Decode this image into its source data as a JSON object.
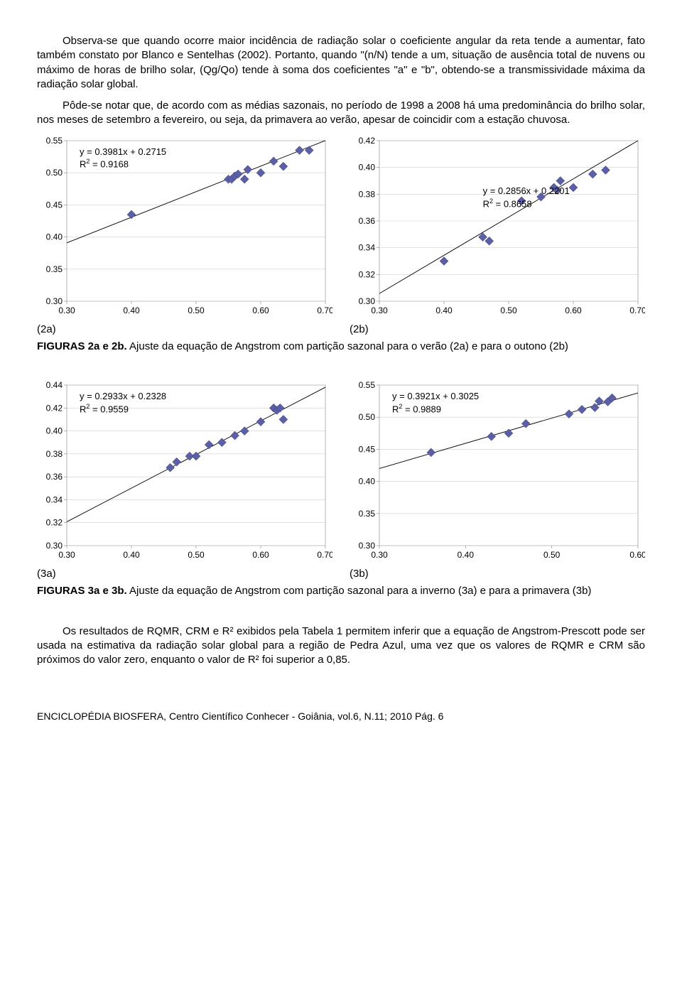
{
  "paragraphs": {
    "p1": "Observa-se que quando ocorre maior incidência de radiação solar o coeficiente angular da reta tende a aumentar, fato também constato por Blanco e Sentelhas (2002). Portanto, quando \"(n/N) tende a um, situação de ausência total de nuvens ou máximo de horas de brilho solar, (Qg/Qo) tende à soma dos coeficientes \"a\" e \"b\", obtendo-se a transmissividade máxima da radiação solar global.",
    "p2": "Pôde-se notar que, de acordo com as médias sazonais, no período de 1998 a 2008 há uma predominância do brilho solar, nos meses de setembro a fevereiro, ou seja, da primavera ao verão, apesar de coincidir com a estação chuvosa.",
    "p3": "Os resultados de RQMR, CRM e R² exibidos pela Tabela 1 permitem inferir que a equação de Angstrom-Prescott pode ser usada na estimativa da radiação solar global para a região de Pedra Azul, uma vez que os valores de RQMR e CRM são próximos do valor zero, enquanto o valor de R² foi superior a 0,85."
  },
  "labels": {
    "l2a": "(2a)",
    "l2b": "(2b)",
    "l3a": "(3a)",
    "l3b": "(3b)"
  },
  "captions": {
    "c2_bold": "FIGURAS 2a e 2b.",
    "c2_rest": " Ajuste da equação de Angstrom com partição sazonal para o verão (2a) e para o outono (2b)",
    "c3_bold": "FIGURAS 3a e 3b.",
    "c3_rest": " Ajuste da equação de Angstrom com partição sazonal para a inverno (3a) e para a primavera (3b)"
  },
  "footer": {
    "text": "ENCICLOPÉDIA BIOSFERA, Centro Científico Conhecer - Goiânia, vol.6, N.11; 2010 Pág. 6"
  },
  "charts": {
    "c2a": {
      "type": "scatter",
      "xlim": [
        0.3,
        0.7
      ],
      "xtick_step": 0.1,
      "ylim": [
        0.3,
        0.55
      ],
      "ytick_step": 0.05,
      "equation": "y = 0.3981x + 0.2715",
      "r2": "R² = 0.9168",
      "eq_pos": "top-left",
      "points": [
        [
          0.4,
          0.435
        ],
        [
          0.55,
          0.49
        ],
        [
          0.555,
          0.49
        ],
        [
          0.56,
          0.495
        ],
        [
          0.565,
          0.498
        ],
        [
          0.575,
          0.49
        ],
        [
          0.58,
          0.505
        ],
        [
          0.6,
          0.5
        ],
        [
          0.62,
          0.518
        ],
        [
          0.635,
          0.51
        ],
        [
          0.66,
          0.535
        ],
        [
          0.675,
          0.535
        ]
      ],
      "marker_color": "#5a5fa6",
      "background": "#ffffff",
      "grid_color": "#cfcfcf",
      "marker_size": 6
    },
    "c2b": {
      "type": "scatter",
      "xlim": [
        0.3,
        0.7
      ],
      "xtick_step": 0.1,
      "ylim": [
        0.3,
        0.42
      ],
      "ytick_step": 0.02,
      "equation": "y = 0.2856x + 0.2201",
      "r2": "R² = 0.8658",
      "eq_pos": "mid-right",
      "points": [
        [
          0.4,
          0.33
        ],
        [
          0.46,
          0.348
        ],
        [
          0.47,
          0.345
        ],
        [
          0.52,
          0.375
        ],
        [
          0.55,
          0.378
        ],
        [
          0.57,
          0.385
        ],
        [
          0.575,
          0.383
        ],
        [
          0.58,
          0.39
        ],
        [
          0.6,
          0.385
        ],
        [
          0.63,
          0.395
        ],
        [
          0.65,
          0.398
        ]
      ],
      "marker_color": "#5a5fa6",
      "background": "#ffffff",
      "grid_color": "#cfcfcf",
      "marker_size": 6
    },
    "c3a": {
      "type": "scatter",
      "xlim": [
        0.3,
        0.7
      ],
      "xtick_step": 0.1,
      "ylim": [
        0.3,
        0.44
      ],
      "ytick_step": 0.02,
      "equation": "y = 0.2933x + 0.2328",
      "r2": "R² = 0.9559",
      "eq_pos": "top-left",
      "points": [
        [
          0.46,
          0.368
        ],
        [
          0.47,
          0.373
        ],
        [
          0.49,
          0.378
        ],
        [
          0.5,
          0.378
        ],
        [
          0.52,
          0.388
        ],
        [
          0.54,
          0.39
        ],
        [
          0.56,
          0.396
        ],
        [
          0.575,
          0.4
        ],
        [
          0.6,
          0.408
        ],
        [
          0.62,
          0.42
        ],
        [
          0.625,
          0.418
        ],
        [
          0.63,
          0.42
        ],
        [
          0.635,
          0.41
        ]
      ],
      "marker_color": "#5a5fa6",
      "background": "#ffffff",
      "grid_color": "#cfcfcf",
      "marker_size": 6
    },
    "c3b": {
      "type": "scatter",
      "xlim": [
        0.3,
        0.6
      ],
      "xtick_step": 0.1,
      "ylim": [
        0.3,
        0.55
      ],
      "ytick_step": 0.05,
      "equation": "y = 0.3921x + 0.3025",
      "r2": "R² = 0.9889",
      "eq_pos": "top-left",
      "points": [
        [
          0.36,
          0.445
        ],
        [
          0.43,
          0.47
        ],
        [
          0.45,
          0.475
        ],
        [
          0.47,
          0.49
        ],
        [
          0.52,
          0.505
        ],
        [
          0.535,
          0.512
        ],
        [
          0.55,
          0.515
        ],
        [
          0.555,
          0.525
        ],
        [
          0.565,
          0.524
        ],
        [
          0.57,
          0.53
        ]
      ],
      "marker_color": "#5a5fa6",
      "background": "#ffffff",
      "grid_color": "#cfcfcf",
      "marker_size": 6
    }
  }
}
